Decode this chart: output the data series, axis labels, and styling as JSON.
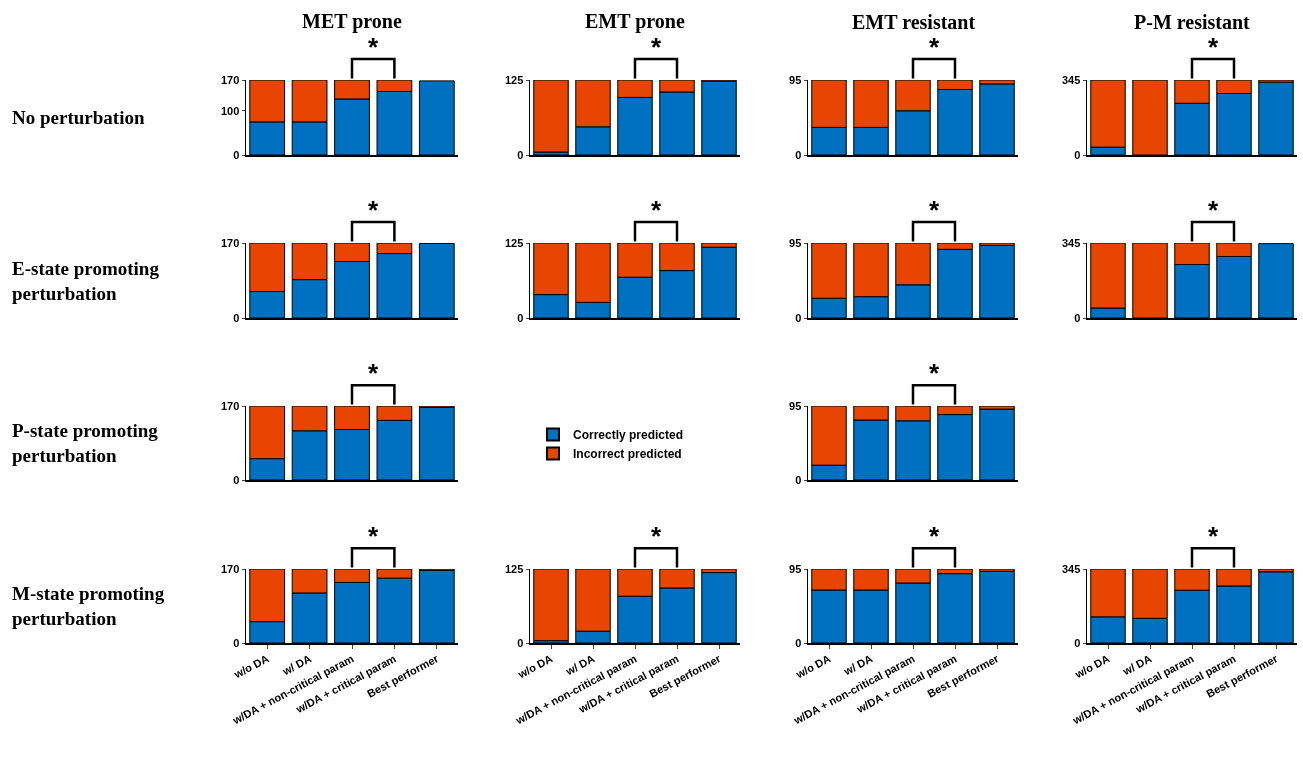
{
  "chart_data": [
    {
      "type": "bar",
      "stacked": true,
      "title": "MET prone",
      "ylabel": "No perturbation",
      "categories": [
        null,
        null,
        null,
        null,
        null
      ],
      "series": [
        {
          "color": "#0070c0",
          "values": [
            75,
            75,
            127,
            144,
            168
          ]
        },
        {
          "color": "#e84600",
          "values": [
            95,
            95,
            43,
            26,
            null
          ]
        }
      ],
      "ylim": [
        0,
        170
      ],
      "yticks": [
        0,
        100,
        170
      ],
      "tick_labels": "y",
      "annotations": [
        "*"
      ]
    },
    {
      "type": "bar",
      "stacked": true,
      "title": "EMT prone",
      "categories": [
        null,
        null,
        null,
        null,
        null
      ],
      "series": [
        {
          "color": "#0070c0",
          "values": [
            5,
            47,
            96,
            105,
            123
          ]
        },
        {
          "color": "#e84600",
          "values": [
            120,
            78,
            29,
            20,
            2
          ]
        }
      ],
      "ylim": [
        0,
        125
      ],
      "yticks": [
        0,
        125
      ],
      "tick_labels": "y",
      "annotations": [
        "*"
      ]
    },
    {
      "type": "bar",
      "stacked": true,
      "title": "EMT resistant",
      "categories": [
        null,
        null,
        null,
        null,
        null
      ],
      "series": [
        {
          "color": "#0070c0",
          "values": [
            35,
            35,
            56,
            83,
            90
          ]
        },
        {
          "color": "#e84600",
          "values": [
            60,
            60,
            39,
            12,
            5
          ]
        }
      ],
      "ylim": [
        0,
        95
      ],
      "yticks": [
        0,
        95
      ],
      "tick_labels": "y",
      "annotations": [
        "*"
      ]
    },
    {
      "type": "bar",
      "stacked": true,
      "title": "P-M resistant",
      "categories": [
        null,
        null,
        null,
        null,
        null
      ],
      "series": [
        {
          "color": "#0070c0",
          "values": [
            36,
            null,
            238,
            283,
            335
          ]
        },
        {
          "color": "#e84600",
          "values": [
            309,
            345,
            107,
            62,
            10
          ]
        }
      ],
      "ylim": [
        0,
        345
      ],
      "yticks": [
        0,
        345
      ],
      "tick_labels": "y",
      "annotations": [
        "*"
      ]
    },
    {
      "type": "bar",
      "stacked": true,
      "ylabel": "E-state promoting\nperturbation",
      "categories": [
        null,
        null,
        null,
        null,
        null
      ],
      "series": [
        {
          "color": "#0070c0",
          "values": [
            60,
            87,
            128,
            146,
            169
          ]
        },
        {
          "color": "#e84600",
          "values": [
            110,
            83,
            42,
            24,
            null
          ]
        }
      ],
      "ylim": [
        0,
        170
      ],
      "yticks": [
        0,
        170
      ],
      "tick_labels": "y",
      "annotations": [
        "*"
      ]
    },
    {
      "type": "bar",
      "stacked": true,
      "categories": [
        null,
        null,
        null,
        null,
        null
      ],
      "series": [
        {
          "color": "#0070c0",
          "values": [
            39,
            26,
            68,
            79,
            118
          ]
        },
        {
          "color": "#e84600",
          "values": [
            86,
            99,
            57,
            46,
            7
          ]
        }
      ],
      "ylim": [
        0,
        125
      ],
      "yticks": [
        0,
        125
      ],
      "tick_labels": "y",
      "annotations": [
        "*"
      ]
    },
    {
      "type": "bar",
      "stacked": true,
      "categories": [
        null,
        null,
        null,
        null,
        null
      ],
      "series": [
        {
          "color": "#0070c0",
          "values": [
            25,
            27,
            42,
            87,
            92
          ]
        },
        {
          "color": "#e84600",
          "values": [
            70,
            68,
            53,
            8,
            3
          ]
        }
      ],
      "ylim": [
        0,
        95
      ],
      "yticks": [
        0,
        95
      ],
      "tick_labels": "y",
      "annotations": [
        "*"
      ]
    },
    {
      "type": "bar",
      "stacked": true,
      "categories": [
        null,
        null,
        null,
        null,
        null
      ],
      "series": [
        {
          "color": "#0070c0",
          "values": [
            46,
            null,
            246,
            283,
            342
          ]
        },
        {
          "color": "#e84600",
          "values": [
            299,
            345,
            99,
            62,
            null
          ]
        }
      ],
      "ylim": [
        0,
        345
      ],
      "yticks": [
        0,
        345
      ],
      "tick_labels": "y",
      "annotations": [
        "*"
      ]
    },
    {
      "type": "bar",
      "stacked": true,
      "ylabel": "P-state promoting\nperturbation",
      "categories": [
        null,
        null,
        null,
        null,
        null
      ],
      "series": [
        {
          "name": "Correctly predicted",
          "color": "#0070c0",
          "values": [
            49,
            113,
            116,
            137,
            167
          ]
        },
        {
          "name": "Incorrect predicted",
          "color": "#e84600",
          "values": [
            121,
            57,
            54,
            33,
            3
          ]
        }
      ],
      "ylim": [
        0,
        170
      ],
      "yticks": [
        0,
        170
      ],
      "tick_labels": "y",
      "legend": "right",
      "annotations": [
        "*"
      ]
    },
    {
      "type": "bar",
      "stacked": true,
      "categories": [
        null,
        null,
        null,
        null,
        null
      ],
      "series": [
        {
          "color": "#0070c0",
          "values": [
            19,
            77,
            76,
            84,
            91
          ]
        },
        {
          "color": "#e84600",
          "values": [
            76,
            18,
            19,
            11,
            4
          ]
        }
      ],
      "ylim": [
        0,
        95
      ],
      "yticks": [
        0,
        95
      ],
      "tick_labels": "y",
      "annotations": [
        "*"
      ]
    },
    {
      "type": "bar",
      "stacked": true,
      "ylabel": "M-state promoting\nperturbation",
      "categories": [
        "w/o DA",
        "w/ DA",
        "w/DA + non-critical param",
        "w/DA + critical param",
        "Best performer"
      ],
      "series": [
        {
          "color": "#0070c0",
          "values": [
            49,
            115,
            139,
            149,
            167
          ]
        },
        {
          "color": "#e84600",
          "values": [
            121,
            55,
            31,
            21,
            3
          ]
        }
      ],
      "ylim": [
        0,
        170
      ],
      "yticks": [
        0,
        170
      ],
      "annotations": [
        "*"
      ]
    },
    {
      "type": "bar",
      "stacked": true,
      "categories": [
        "w/o DA",
        "w/ DA",
        "w/DA + non-critical param",
        "w/DA + critical param",
        "Best performer"
      ],
      "series": [
        {
          "color": "#0070c0",
          "values": [
            4,
            20,
            79,
            93,
            119
          ]
        },
        {
          "color": "#e84600",
          "values": [
            121,
            105,
            46,
            32,
            6
          ]
        }
      ],
      "ylim": [
        0,
        125
      ],
      "yticks": [
        0,
        125
      ],
      "annotations": [
        "*"
      ]
    },
    {
      "type": "bar",
      "stacked": true,
      "categories": [
        "w/o DA",
        "w/ DA",
        "w/DA + non-critical param",
        "w/DA + critical param",
        "Best performer"
      ],
      "series": [
        {
          "color": "#0070c0",
          "values": [
            68,
            68,
            77,
            89,
            92
          ]
        },
        {
          "color": "#e84600",
          "values": [
            27,
            27,
            18,
            6,
            3
          ]
        }
      ],
      "ylim": [
        0,
        95
      ],
      "yticks": [
        0,
        95
      ],
      "annotations": [
        "*"
      ]
    },
    {
      "type": "bar",
      "stacked": true,
      "categories": [
        "w/o DA",
        "w/ DA",
        "w/DA + non-critical param",
        "w/DA + critical param",
        "Best performer"
      ],
      "series": [
        {
          "color": "#0070c0",
          "values": [
            122,
            115,
            246,
            266,
            332
          ]
        },
        {
          "color": "#e84600",
          "values": [
            223,
            230,
            99,
            79,
            13
          ]
        }
      ],
      "ylim": [
        0,
        345
      ],
      "yticks": [
        0,
        345
      ],
      "annotations": [
        "*"
      ]
    }
  ]
}
